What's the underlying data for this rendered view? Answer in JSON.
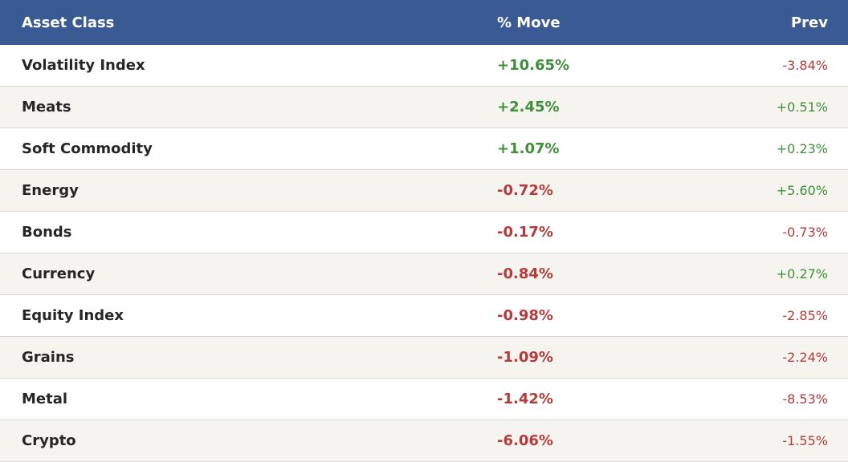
{
  "table": {
    "header": [
      "Asset Class",
      "% Move",
      "Prev"
    ],
    "rows": [
      [
        "Volatility Index",
        "+10.65%",
        "-3.84%"
      ],
      [
        "Meats",
        "+2.45%",
        "+0.51%"
      ],
      [
        "Soft Commodity",
        "+1.07%",
        "+0.23%"
      ],
      [
        "Energy",
        "-0.72%",
        "+5.60%"
      ],
      [
        "Bonds",
        "-0.17%",
        "-0.73%"
      ],
      [
        "Currency",
        "-0.84%",
        "+0.27%"
      ],
      [
        "Equity Index",
        "-0.98%",
        "-2.85%"
      ],
      [
        "Grains",
        "-1.09%",
        "-2.24%"
      ],
      [
        "Metal",
        "-1.42%",
        "-8.53%"
      ],
      [
        "Crypto",
        "-6.06%",
        "-1.55%"
      ]
    ]
  }
}
